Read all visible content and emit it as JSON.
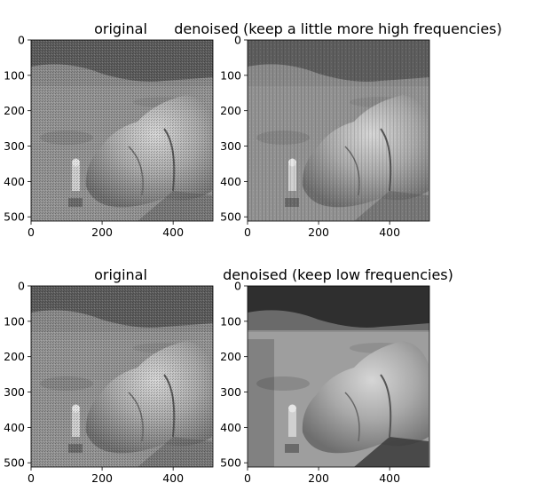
{
  "chart_data": [
    {
      "type": "image",
      "title": "original",
      "xticks": [
        0,
        200,
        400
      ],
      "yticks": [
        0,
        100,
        200,
        300,
        400,
        500
      ],
      "xlim": [
        0,
        512
      ],
      "ylim": [
        512,
        0
      ],
      "style": "noisy"
    },
    {
      "type": "image",
      "title": "denoised (keep a little more high frequencies)",
      "xticks": [
        0,
        200,
        400
      ],
      "yticks": [
        0,
        100,
        200,
        300,
        400,
        500
      ],
      "xlim": [
        0,
        512
      ],
      "ylim": [
        512,
        0
      ],
      "style": "mild"
    },
    {
      "type": "image",
      "title": "original",
      "xticks": [
        0,
        200,
        400
      ],
      "yticks": [
        0,
        100,
        200,
        300,
        400,
        500
      ],
      "xlim": [
        0,
        512
      ],
      "ylim": [
        512,
        0
      ],
      "style": "noisy"
    },
    {
      "type": "image",
      "title": "denoised (keep low frequencies)",
      "xticks": [
        0,
        200,
        400
      ],
      "yticks": [
        0,
        100,
        200,
        300,
        400,
        500
      ],
      "xlim": [
        0,
        512
      ],
      "ylim": [
        512,
        0
      ],
      "style": "smooth"
    }
  ]
}
